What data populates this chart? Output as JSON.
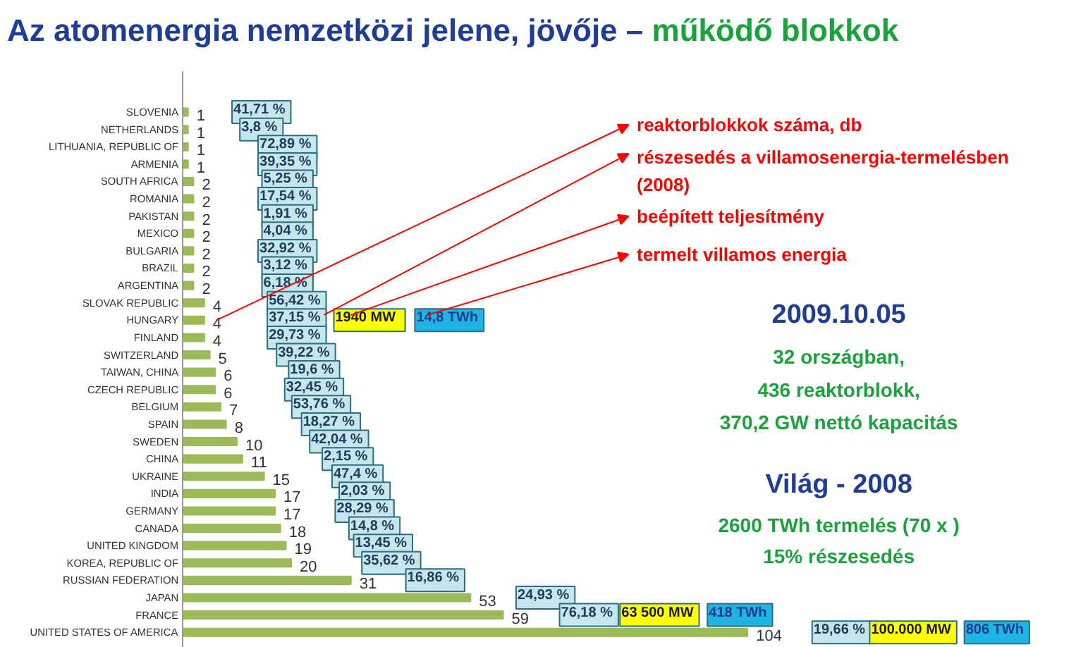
{
  "chart_data": {
    "type": "bar",
    "orientation": "horizontal",
    "title": "Az atomenergia nemzetközi jelene, jövője –",
    "subtitle": "működő blokkok",
    "categories": [
      "SLOVENIA",
      "NETHERLANDS",
      "LITHUANIA, REPUBLIC OF",
      "ARMENIA",
      "SOUTH AFRICA",
      "ROMANIA",
      "PAKISTAN",
      "MEXICO",
      "BULGARIA",
      "BRAZIL",
      "ARGENTINA",
      "SLOVAK REPUBLIC",
      "HUNGARY",
      "FINLAND",
      "SWITZERLAND",
      "TAIWAN, CHINA",
      "CZECH REPUBLIC",
      "BELGIUM",
      "SPAIN",
      "SWEDEN",
      "CHINA",
      "UKRAINE",
      "INDIA",
      "GERMANY",
      "CANADA",
      "UNITED KINGDOM",
      "KOREA, REPUBLIC OF",
      "RUSSIAN FEDERATION",
      "JAPAN",
      "FRANCE",
      "UNITED STATES OF AMERICA"
    ],
    "values": [
      1,
      1,
      1,
      1,
      2,
      2,
      2,
      2,
      2,
      2,
      2,
      4,
      4,
      4,
      5,
      6,
      6,
      7,
      8,
      10,
      11,
      15,
      17,
      17,
      18,
      19,
      20,
      31,
      53,
      59,
      104
    ],
    "color": "#9bbb59",
    "data_labels": true,
    "annotations": [
      "reaktorblokkok száma, db",
      "részesedés a villamosenergia-termelésben (2008)",
      "beépített teljesítmény",
      "termelt villamos energia",
      "2009.10.05",
      "32 országban,",
      "436 reaktorblokk,",
      "370,2 GW nettó kapacitás",
      "Világ - 2008",
      "2600 TWh termelés (70 x )",
      "15% részesedés",
      "1940  MW",
      "14,8 TWh",
      "63 500 MW",
      "418 TWh",
      "19,66 %",
      "100.000 MW",
      "806 TWh",
      {
        "text": "41,71 %",
        "x": 14.5,
        "y": "SLOVENIA"
      },
      {
        "text": "3,8 %",
        "x": 14.5,
        "y": "NETHERLANDS"
      },
      {
        "text": "72,89 %",
        "x": 19.3,
        "y": "LITHUANIA, REPUBLIC OF"
      },
      {
        "text": "39,35 %",
        "x": 19.3,
        "y": "ARMENIA"
      },
      {
        "text": "5,25 %",
        "x": 19.3,
        "y": "SOUTH AFRICA"
      },
      {
        "text": "17,54 %",
        "x": 19.3,
        "y": "ROMANIA"
      },
      {
        "text": "1,91 %",
        "x": 19.3,
        "y": "PAKISTAN"
      },
      {
        "text": "4,04 %",
        "x": 19.3,
        "y": "MEXICO"
      },
      {
        "text": "32,92 %",
        "x": 19.3,
        "y": "BULGARIA"
      },
      {
        "text": "3,12 %",
        "x": 19.3,
        "y": "BRAZIL"
      },
      {
        "text": "6,18 %",
        "x": 19.3,
        "y": "ARGENTINA"
      },
      {
        "text": "56,42 %",
        "x": 21.0,
        "y": "SLOVAK REPUBLIC"
      },
      {
        "text": "37,15 %",
        "x": 21.0,
        "y": "HUNGARY"
      },
      {
        "text": "29,73 %",
        "x": 21.0,
        "y": "FINLAND"
      },
      {
        "text": "39,22 %",
        "x": 22.7,
        "y": "SWITZERLAND"
      },
      {
        "text": "19,6 %",
        "x": 24.2,
        "y": "TAIWAN, CHINA"
      },
      {
        "text": "32,45 %",
        "x": 24.2,
        "y": "CZECH REPUBLIC"
      },
      {
        "text": "53,76 %",
        "x": 25.5,
        "y": "BELGIUM"
      },
      {
        "text": "18,27 %",
        "x": 27.3,
        "y": "SPAIN"
      },
      {
        "text": "42,04 %",
        "x": 28.8,
        "y": "SWEDEN"
      },
      {
        "text": "2,15 %",
        "x": 30.4,
        "y": "CHINA"
      },
      {
        "text": "47,4 %",
        "x": 32.2,
        "y": "UKRAINE"
      },
      {
        "text": "2,03 %",
        "x": 33.5,
        "y": "INDIA"
      },
      {
        "text": "28,29 %",
        "x": 33.5,
        "y": "GERMANY"
      },
      {
        "text": "14,8 %",
        "x": 35.3,
        "y": "CANADA"
      },
      {
        "text": "13,45 %",
        "x": 36.9,
        "y": "UNITED KINGDOM"
      },
      {
        "text": "35,62 %",
        "x": 38.4,
        "y": "KOREA, REPUBLIC OF"
      },
      {
        "text": "16,86 %",
        "x": 46.5,
        "y": "RUSSIAN FEDERATION"
      },
      {
        "text": "24,93 %",
        "x": 66.8,
        "y": "JAPAN"
      },
      {
        "text": "76,18 %",
        "x": 74.8,
        "y": "FRANCE"
      }
    ]
  }
}
